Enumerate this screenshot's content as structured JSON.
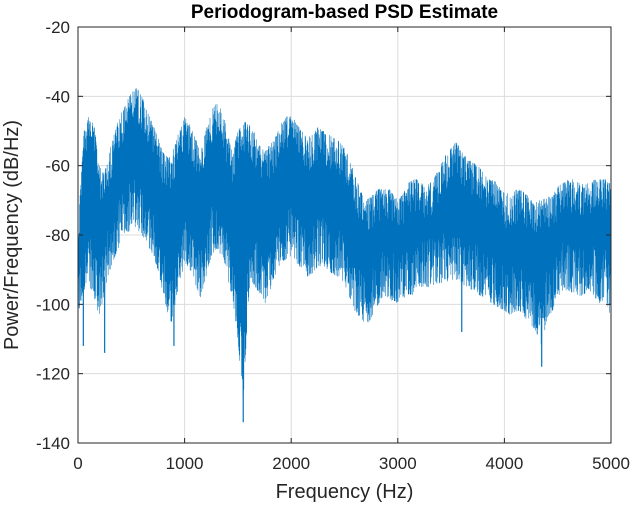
{
  "chart_data": {
    "type": "line",
    "title": "Periodogram-based PSD Estimate",
    "xlabel": "Frequency (Hz)",
    "ylabel": "Power/Frequency (dB/Hz)",
    "xlim": [
      0,
      5000
    ],
    "ylim": [
      -140,
      -20
    ],
    "xticks": [
      0,
      1000,
      2000,
      3000,
      4000,
      5000
    ],
    "yticks": [
      -140,
      -120,
      -100,
      -80,
      -60,
      -40,
      -20
    ],
    "xtick_labels": [
      "0",
      "1000",
      "2000",
      "3000",
      "4000",
      "5000"
    ],
    "ytick_labels": [
      "-140",
      "-120",
      "-100",
      "-80",
      "-60",
      "-40",
      "-20"
    ],
    "grid": true,
    "line_color": "#0072BD",
    "series": [
      {
        "x": [
          0,
          50,
          100,
          150,
          200,
          250,
          300,
          350,
          400,
          450,
          500,
          550,
          600,
          650,
          700,
          750,
          800,
          850,
          900,
          950,
          1000,
          1050,
          1100,
          1150,
          1200,
          1250,
          1300,
          1350,
          1400,
          1450,
          1500,
          1550,
          1600,
          1650,
          1700,
          1750,
          1800,
          1850,
          1900,
          1950,
          2000,
          2050,
          2100,
          2150,
          2200,
          2250,
          2300,
          2350,
          2400,
          2450,
          2500,
          2550,
          2600,
          2650,
          2700,
          2750,
          2800,
          2850,
          2900,
          2950,
          3000,
          3050,
          3100,
          3150,
          3200,
          3250,
          3300,
          3350,
          3400,
          3450,
          3500,
          3550,
          3600,
          3650,
          3700,
          3750,
          3800,
          3850,
          3900,
          3950,
          4000,
          4050,
          4100,
          4150,
          4200,
          4250,
          4300,
          4350,
          4400,
          4450,
          4500,
          4550,
          4600,
          4650,
          4700,
          4750,
          4800,
          4850,
          4900,
          4950,
          5000
        ],
        "upper": [
          -80,
          -50,
          -46,
          -48,
          -60,
          -62,
          -55,
          -50,
          -45,
          -42,
          -39,
          -37,
          -40,
          -44,
          -48,
          -52,
          -56,
          -58,
          -55,
          -50,
          -46,
          -48,
          -52,
          -56,
          -50,
          -44,
          -42,
          -44,
          -50,
          -56,
          -50,
          -47,
          -48,
          -50,
          -54,
          -56,
          -54,
          -52,
          -48,
          -46,
          -45,
          -48,
          -50,
          -52,
          -51,
          -49,
          -50,
          -51,
          -52,
          -53,
          -55,
          -58,
          -63,
          -67,
          -70,
          -69,
          -67,
          -66,
          -66,
          -68,
          -70,
          -68,
          -65,
          -64,
          -64,
          -66,
          -65,
          -63,
          -60,
          -57,
          -55,
          -53,
          -56,
          -58,
          -59,
          -60,
          -62,
          -64,
          -64,
          -66,
          -68,
          -68,
          -67,
          -67,
          -68,
          -70,
          -70,
          -70,
          -69,
          -69,
          -66,
          -65,
          -64,
          -64,
          -65,
          -65,
          -65,
          -64,
          -64,
          -64,
          -65
        ],
        "lower": [
          -110,
          -102,
          -100,
          -104,
          -110,
          -102,
          -96,
          -92,
          -88,
          -86,
          -84,
          -84,
          -86,
          -88,
          -92,
          -96,
          -103,
          -110,
          -112,
          -100,
          -94,
          -96,
          -100,
          -104,
          -98,
          -92,
          -90,
          -92,
          -98,
          -104,
          -116,
          -134,
          -104,
          -100,
          -103,
          -106,
          -102,
          -98,
          -94,
          -93,
          -92,
          -94,
          -96,
          -98,
          -97,
          -95,
          -95,
          -96,
          -98,
          -98,
          -100,
          -104,
          -108,
          -110,
          -112,
          -110,
          -107,
          -104,
          -104,
          -105,
          -106,
          -104,
          -104,
          -103,
          -101,
          -101,
          -101,
          -100,
          -100,
          -99,
          -100,
          -99,
          -100,
          -101,
          -102,
          -103,
          -104,
          -105,
          -106,
          -107,
          -108,
          -109,
          -108,
          -108,
          -110,
          -112,
          -114,
          -118,
          -110,
          -108,
          -104,
          -102,
          -102,
          -103,
          -104,
          -103,
          -102,
          -104,
          -106,
          -104,
          -110
        ],
        "spikes": [
          {
            "x": 1550,
            "y": -134
          },
          {
            "x": 900,
            "y": -112
          },
          {
            "x": 4350,
            "y": -118
          },
          {
            "x": 250,
            "y": -114
          },
          {
            "x": 50,
            "y": -112
          },
          {
            "x": 3600,
            "y": -108
          }
        ]
      }
    ]
  }
}
